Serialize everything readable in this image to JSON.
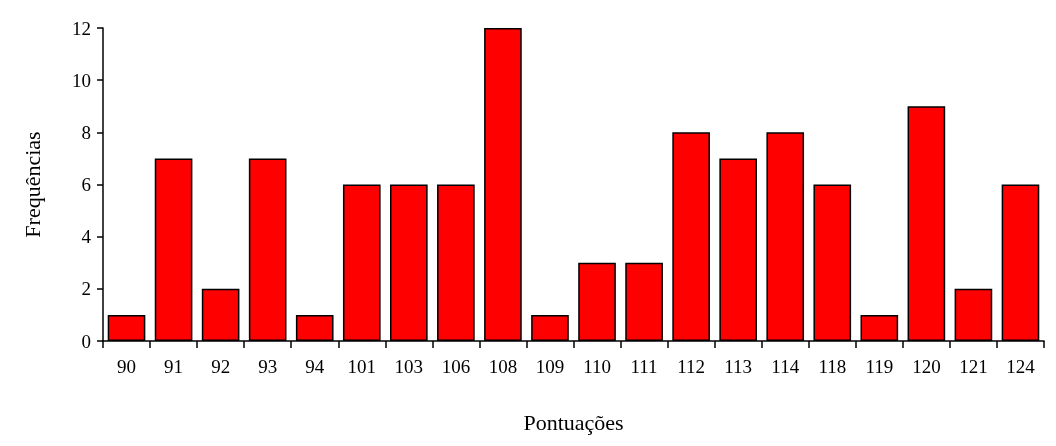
{
  "chart_data": {
    "type": "bar",
    "xlabel": "Pontuações",
    "ylabel": "Frequências",
    "categories": [
      "90",
      "91",
      "92",
      "93",
      "94",
      "101",
      "103",
      "106",
      "108",
      "109",
      "110",
      "111",
      "112",
      "113",
      "114",
      "118",
      "119",
      "120",
      "121",
      "124"
    ],
    "values": [
      1,
      7,
      2,
      7,
      1,
      6,
      6,
      6,
      12,
      1,
      3,
      3,
      8,
      7,
      8,
      6,
      1,
      9,
      2,
      6
    ],
    "color": "#ff0000",
    "ylim": [
      0,
      12
    ],
    "yticks": [
      0,
      2,
      4,
      6,
      8,
      10,
      12
    ],
    "grid": false
  }
}
